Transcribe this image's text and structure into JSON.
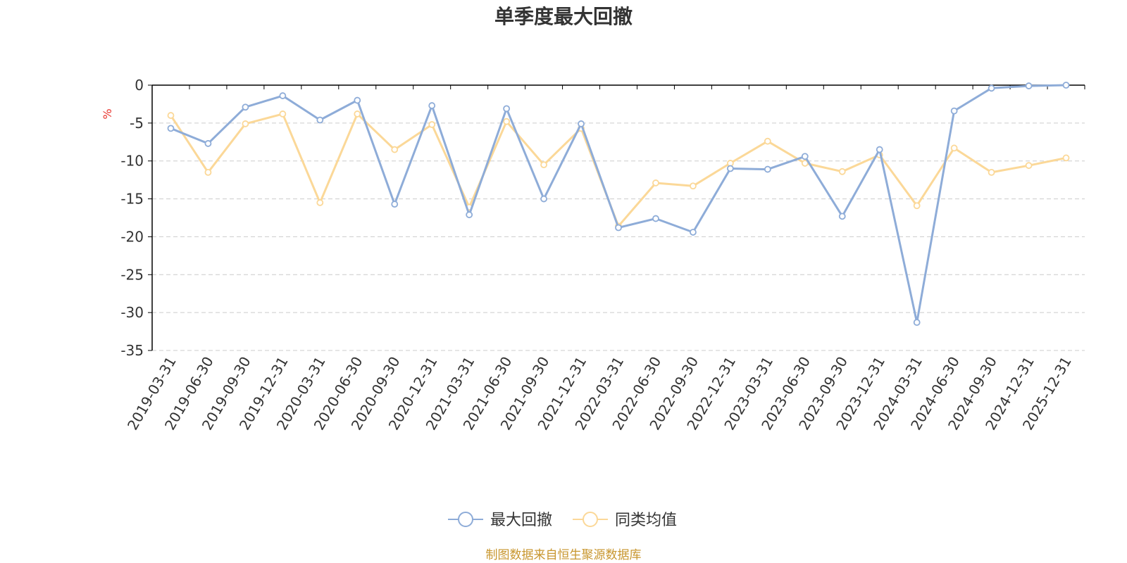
{
  "colors": {
    "series1": "#8eacd8",
    "series2": "#fbd898",
    "axis": "#000000",
    "grid": "#cccccc",
    "unit": "#e8352e",
    "source": "#c8962e"
  },
  "chart_data": {
    "type": "line",
    "title": "单季度最大回撤",
    "ylabel": "%",
    "ylim": [
      -35,
      0
    ],
    "yticks": [
      0,
      -5,
      -10,
      -15,
      -20,
      -25,
      -30,
      -35
    ],
    "grid": "horizontal-dashed",
    "legend_position": "bottom-center",
    "x": [
      "2019-03-31",
      "2019-06-30",
      "2019-09-30",
      "2019-12-31",
      "2020-03-31",
      "2020-06-30",
      "2020-09-30",
      "2020-12-31",
      "2021-03-31",
      "2021-06-30",
      "2021-09-30",
      "2021-12-31",
      "2022-03-31",
      "2022-06-30",
      "2022-09-30",
      "2022-12-31",
      "2023-03-31",
      "2023-06-30",
      "2023-09-30",
      "2023-12-31",
      "2024-03-31",
      "2024-06-30",
      "2024-09-30",
      "2024-12-31",
      "2025-12-31"
    ],
    "series": [
      {
        "name": "最大回撤",
        "color": "#8eacd8",
        "values": [
          -5.7,
          -7.7,
          -2.9,
          -1.4,
          -4.6,
          -2.0,
          -15.7,
          -2.7,
          -17.1,
          -3.1,
          -15.0,
          -5.1,
          -18.8,
          -17.6,
          -19.4,
          -11.0,
          -11.1,
          -9.4,
          -17.3,
          -8.5,
          -31.3,
          -3.4,
          -0.4,
          -0.1,
          0.0
        ]
      },
      {
        "name": "同类均值",
        "color": "#fbd898",
        "values": [
          -4.0,
          -11.5,
          -5.1,
          -3.8,
          -15.5,
          -3.8,
          -8.5,
          -5.2,
          -16.1,
          -4.8,
          -10.5,
          -5.7,
          -18.6,
          -12.9,
          -13.3,
          -10.3,
          -7.4,
          -10.3,
          -11.4,
          -9.2,
          -15.9,
          -8.3,
          -11.5,
          -10.6,
          -9.6
        ]
      }
    ]
  },
  "source_text": "制图数据来自恒生聚源数据库"
}
